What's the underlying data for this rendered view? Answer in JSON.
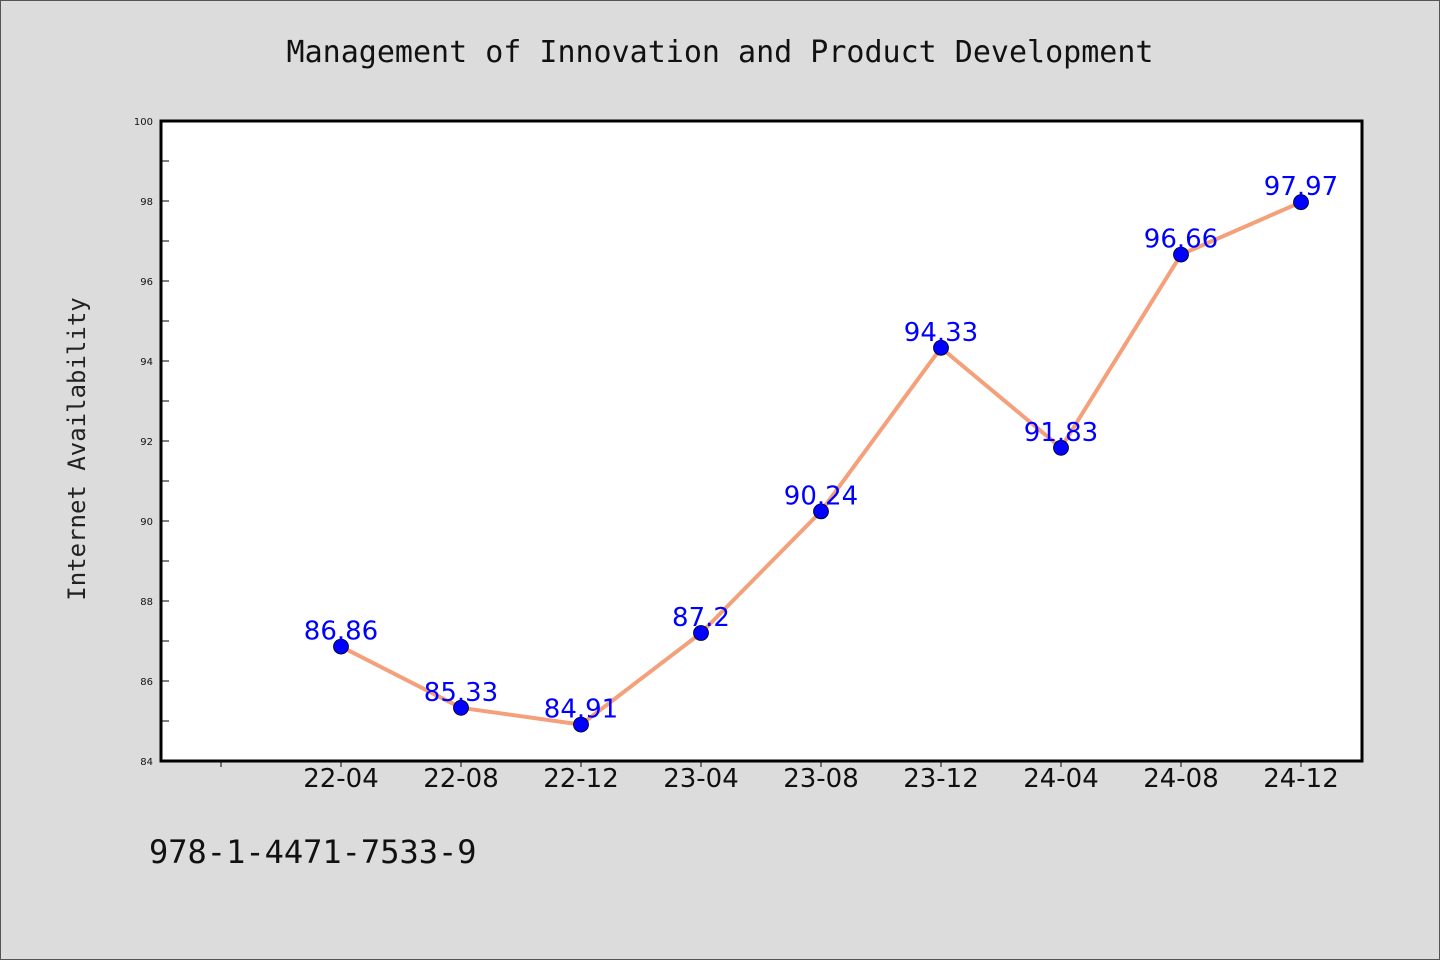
{
  "chart_data": {
    "type": "line",
    "title": "Management of Innovation and Product Development",
    "xlabel": "",
    "ylabel": "Internet Availability",
    "categories": [
      "22-04",
      "22-08",
      "22-12",
      "23-04",
      "23-08",
      "23-12",
      "24-04",
      "24-08",
      "24-12"
    ],
    "series": [
      {
        "values": [
          86.86,
          85.33,
          84.91,
          87.2,
          90.24,
          94.33,
          91.83,
          96.66,
          97.97
        ],
        "line_color": "#f4a07a",
        "marker_color": "#0000ff"
      }
    ],
    "data_labels": [
      "86.86",
      "85.33",
      "84.91",
      "87.2",
      "90.24",
      "94.33",
      "91.83",
      "96.66",
      "97.97"
    ],
    "ylim": [
      84,
      100
    ],
    "yticks": [
      84,
      86,
      88,
      90,
      92,
      94,
      96,
      98,
      100
    ],
    "grid": false,
    "legend": "none",
    "label_color": "#0000ff"
  },
  "footnote": "978-1-4471-7533-9"
}
